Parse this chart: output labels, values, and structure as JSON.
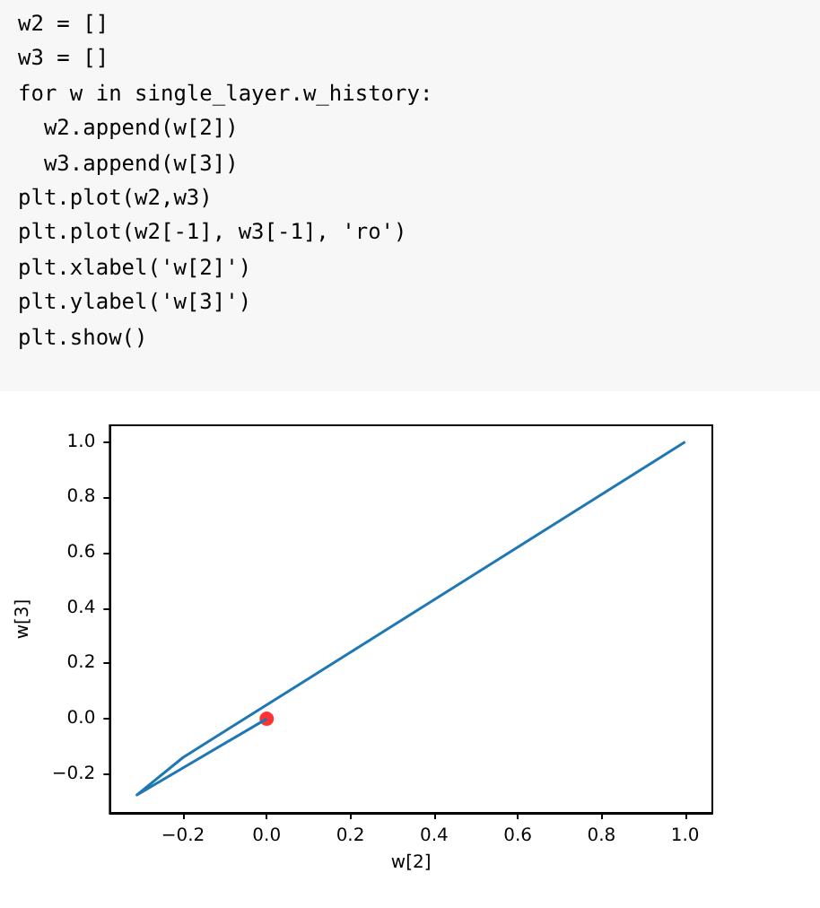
{
  "chart_data": {
    "type": "line",
    "xlabel": "w[2]",
    "ylabel": "w[3]",
    "annotations": [
      "w2 = []",
      "w3 = []",
      "for w in single_layer.w_history:",
      "  w2.append(w[2])",
      "  w3.append(w[3])",
      "plt.plot(w2,w3)",
      "plt.plot(w2[-1], w3[-1], 'ro')",
      "plt.xlabel('w[2]')",
      "plt.ylabel('w[3]')",
      "plt.show()"
    ],
    "series": [
      {
        "color": "#1f77b4",
        "x": [
          1.0,
          -0.2,
          -0.31,
          0.0
        ],
        "values": [
          1.0,
          -0.14,
          -0.275,
          0.0
        ],
        "marker": "none"
      },
      {
        "type": "scatter",
        "color": "#ff0000",
        "x": [
          0.0
        ],
        "values": [
          0.0
        ],
        "marker": "circle"
      }
    ],
    "xlim": [
      -0.375,
      1.065
    ],
    "ylim": [
      -0.34,
      1.06
    ],
    "xticks": [
      {
        "value": -0.2,
        "label": "−0.2"
      },
      {
        "value": 0,
        "label": "0.0"
      },
      {
        "value": 0.2,
        "label": "0.2"
      },
      {
        "value": 0.4,
        "label": "0.4"
      },
      {
        "value": 0.6,
        "label": "0.6"
      },
      {
        "value": 0.8,
        "label": "0.8"
      },
      {
        "value": 1,
        "label": "1.0"
      }
    ],
    "yticks": [
      {
        "value": -0.2,
        "label": "−0.2"
      },
      {
        "value": 0,
        "label": "0.0"
      },
      {
        "value": 0.2,
        "label": "0.2"
      },
      {
        "value": 0.4,
        "label": "0.4"
      },
      {
        "value": 0.6,
        "label": "0.6"
      },
      {
        "value": 0.8,
        "label": "0.8"
      },
      {
        "value": 1,
        "label": "1.0"
      }
    ],
    "grid": false
  }
}
